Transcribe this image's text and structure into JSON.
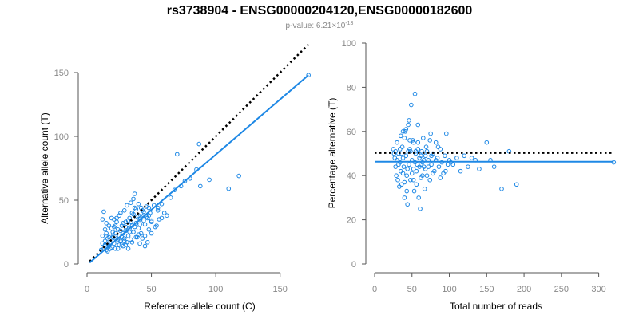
{
  "title": "rs3738904 - ENSG00000204120,ENSG00000182600",
  "subtitle_prefix": "p-value: 6.21×10",
  "subtitle_exponent": "-13",
  "colors": {
    "points": "#1e88e5",
    "fit": "#1e88e5",
    "reference": "#000000",
    "axes": "#555555"
  },
  "chart_data": [
    {
      "type": "scatter",
      "xlabel": "Reference allele count (C)",
      "ylabel": "Alternative allele count (T)",
      "xlim": [
        0,
        175
      ],
      "ylim": [
        0,
        150
      ],
      "xticks": [
        "0",
        "50",
        "100",
        "150"
      ],
      "yticks": [
        "0",
        "50",
        "100",
        "150"
      ],
      "xtick_values": [
        0,
        50,
        100,
        150
      ],
      "ytick_values": [
        0,
        50,
        100,
        150
      ],
      "fit_line": {
        "x": [
          2,
          172
        ],
        "y": [
          1,
          148
        ]
      },
      "reference_line": {
        "x": [
          2,
          172
        ],
        "y": [
          2,
          172
        ],
        "style": "dotted"
      },
      "points": [
        [
          13,
          12
        ],
        [
          14,
          15
        ],
        [
          15,
          11
        ],
        [
          16,
          20
        ],
        [
          17,
          14
        ],
        [
          18,
          22
        ],
        [
          19,
          13
        ],
        [
          20,
          18
        ],
        [
          20,
          25
        ],
        [
          21,
          16
        ],
        [
          22,
          12
        ],
        [
          23,
          20
        ],
        [
          24,
          27
        ],
        [
          25,
          15
        ],
        [
          25,
          22
        ],
        [
          26,
          18
        ],
        [
          27,
          30
        ],
        [
          28,
          24
        ],
        [
          28,
          14
        ],
        [
          29,
          20
        ],
        [
          30,
          33
        ],
        [
          30,
          26
        ],
        [
          31,
          17
        ],
        [
          32,
          22
        ],
        [
          33,
          28
        ],
        [
          33,
          36
        ],
        [
          34,
          19
        ],
        [
          35,
          30
        ],
        [
          35,
          40
        ],
        [
          36,
          25
        ],
        [
          37,
          44
        ],
        [
          38,
          32
        ],
        [
          38,
          21
        ],
        [
          39,
          37
        ],
        [
          40,
          47
        ],
        [
          40,
          28
        ],
        [
          41,
          35
        ],
        [
          42,
          24
        ],
        [
          43,
          42
        ],
        [
          44,
          38
        ],
        [
          45,
          31
        ],
        [
          46,
          45
        ],
        [
          47,
          36
        ],
        [
          48,
          27
        ],
        [
          49,
          40
        ],
        [
          50,
          34
        ],
        [
          52,
          46
        ],
        [
          54,
          30
        ],
        [
          55,
          42
        ],
        [
          58,
          47
        ],
        [
          12,
          22
        ],
        [
          12,
          35
        ],
        [
          13,
          41
        ],
        [
          14,
          27
        ],
        [
          15,
          32
        ],
        [
          16,
          10
        ],
        [
          17,
          30
        ],
        [
          18,
          12
        ],
        [
          19,
          28
        ],
        [
          21,
          35
        ],
        [
          22,
          30
        ],
        [
          23,
          36
        ],
        [
          24,
          12
        ],
        [
          25,
          38
        ],
        [
          27,
          15
        ],
        [
          29,
          42
        ],
        [
          31,
          46
        ],
        [
          32,
          12
        ],
        [
          34,
          48
        ],
        [
          36,
          51
        ],
        [
          37,
          55
        ],
        [
          39,
          21
        ],
        [
          41,
          16
        ],
        [
          43,
          20
        ],
        [
          45,
          22
        ],
        [
          47,
          17
        ],
        [
          50,
          24
        ],
        [
          53,
          29
        ],
        [
          56,
          35
        ],
        [
          60,
          40
        ],
        [
          62,
          38
        ],
        [
          65,
          52
        ],
        [
          68,
          58
        ],
        [
          70,
          86
        ],
        [
          73,
          61
        ],
        [
          76,
          65
        ],
        [
          80,
          67
        ],
        [
          85,
          74
        ],
        [
          87,
          94
        ],
        [
          88,
          61
        ],
        [
          95,
          66
        ],
        [
          110,
          59
        ],
        [
          118,
          69
        ],
        [
          172,
          148
        ],
        [
          11,
          11
        ],
        [
          12,
          16
        ],
        [
          14,
          18
        ],
        [
          16,
          16
        ],
        [
          18,
          17
        ],
        [
          20,
          21
        ],
        [
          22,
          24
        ],
        [
          24,
          19
        ],
        [
          26,
          26
        ],
        [
          28,
          32
        ],
        [
          30,
          29
        ],
        [
          32,
          34
        ],
        [
          34,
          33
        ],
        [
          36,
          39
        ],
        [
          38,
          43
        ],
        [
          40,
          38
        ],
        [
          42,
          44
        ],
        [
          44,
          41
        ],
        [
          46,
          37
        ],
        [
          48,
          44
        ],
        [
          26,
          40
        ],
        [
          30,
          15
        ],
        [
          35,
          17
        ],
        [
          40,
          23
        ],
        [
          45,
          14
        ],
        [
          50,
          33
        ],
        [
          55,
          44
        ],
        [
          58,
          36
        ],
        [
          19,
          36
        ],
        [
          21,
          29
        ],
        [
          23,
          33
        ],
        [
          27,
          21
        ],
        [
          29,
          18
        ],
        [
          33,
          25
        ],
        [
          37,
          29
        ],
        [
          41,
          31
        ],
        [
          44,
          34
        ],
        [
          48,
          38
        ],
        [
          15,
          24
        ],
        [
          17,
          21
        ]
      ]
    },
    {
      "type": "scatter",
      "xlabel": "Total number of reads",
      "ylabel": "Percentage alternative (T)",
      "xlim": [
        0,
        325
      ],
      "ylim": [
        0,
        100
      ],
      "xticks": [
        "0",
        "50",
        "100",
        "150",
        "200",
        "250",
        "300"
      ],
      "yticks": [
        "0",
        "20",
        "40",
        "60",
        "80",
        "100"
      ],
      "xtick_values": [
        0,
        50,
        100,
        150,
        200,
        250,
        300
      ],
      "ytick_values": [
        0,
        20,
        40,
        60,
        80,
        100
      ],
      "fit_line": {
        "x": [
          0,
          320
        ],
        "y": [
          46.3,
          46.3
        ]
      },
      "reference_line": {
        "x": [
          0,
          320
        ],
        "y": [
          50.3,
          50.3
        ],
        "style": "dotted"
      },
      "points": [
        [
          25,
          52
        ],
        [
          27,
          48
        ],
        [
          28,
          44
        ],
        [
          29,
          40
        ],
        [
          30,
          55
        ],
        [
          31,
          38
        ],
        [
          32,
          50
        ],
        [
          33,
          35
        ],
        [
          34,
          46
        ],
        [
          35,
          42
        ],
        [
          36,
          36
        ],
        [
          37,
          53
        ],
        [
          38,
          48
        ],
        [
          39,
          44
        ],
        [
          40,
          30
        ],
        [
          41,
          60
        ],
        [
          42,
          49
        ],
        [
          43,
          40
        ],
        [
          44,
          27
        ],
        [
          45,
          63
        ],
        [
          46,
          45
        ],
        [
          47,
          52
        ],
        [
          48,
          38
        ],
        [
          49,
          72
        ],
        [
          50,
          47
        ],
        [
          51,
          56
        ],
        [
          52,
          43
        ],
        [
          53,
          33
        ],
        [
          54,
          77
        ],
        [
          55,
          50
        ],
        [
          56,
          42
        ],
        [
          57,
          45
        ],
        [
          58,
          55
        ],
        [
          59,
          30
        ],
        [
          60,
          48
        ],
        [
          61,
          25
        ],
        [
          62,
          39
        ],
        [
          63,
          51
        ],
        [
          64,
          46
        ],
        [
          65,
          57
        ],
        [
          66,
          44
        ],
        [
          67,
          34
        ],
        [
          68,
          49
        ],
        [
          69,
          53
        ],
        [
          70,
          40
        ],
        [
          72,
          47
        ],
        [
          74,
          38
        ],
        [
          75,
          59
        ],
        [
          76,
          45
        ],
        [
          78,
          50
        ],
        [
          80,
          42
        ],
        [
          82,
          55
        ],
        [
          84,
          48
        ],
        [
          86,
          44
        ],
        [
          88,
          52
        ],
        [
          90,
          46
        ],
        [
          92,
          41
        ],
        [
          94,
          49
        ],
        [
          96,
          59
        ],
        [
          98,
          45
        ],
        [
          100,
          47
        ],
        [
          105,
          45
        ],
        [
          110,
          48
        ],
        [
          115,
          42
        ],
        [
          120,
          49
        ],
        [
          125,
          44
        ],
        [
          130,
          48
        ],
        [
          135,
          47
        ],
        [
          140,
          43
        ],
        [
          150,
          55
        ],
        [
          155,
          47
        ],
        [
          160,
          44
        ],
        [
          170,
          34
        ],
        [
          180,
          51
        ],
        [
          190,
          36
        ],
        [
          320,
          46
        ],
        [
          26,
          50
        ],
        [
          28,
          51
        ],
        [
          30,
          47
        ],
        [
          32,
          45
        ],
        [
          34,
          52
        ],
        [
          36,
          50
        ],
        [
          38,
          41
        ],
        [
          40,
          57
        ],
        [
          42,
          61
        ],
        [
          44,
          43
        ],
        [
          46,
          65
        ],
        [
          48,
          51
        ],
        [
          50,
          41
        ],
        [
          52,
          55
        ],
        [
          54,
          46
        ],
        [
          56,
          36
        ],
        [
          58,
          52
        ],
        [
          60,
          44
        ],
        [
          62,
          49
        ],
        [
          64,
          40
        ],
        [
          66,
          47
        ],
        [
          68,
          43
        ],
        [
          70,
          51
        ],
        [
          72,
          44
        ],
        [
          74,
          56
        ],
        [
          76,
          49
        ],
        [
          78,
          41
        ],
        [
          82,
          47
        ],
        [
          85,
          53
        ],
        [
          88,
          39
        ],
        [
          95,
          42
        ],
        [
          102,
          46
        ],
        [
          35,
          58
        ],
        [
          38,
          60
        ],
        [
          40,
          37
        ],
        [
          43,
          33
        ],
        [
          45,
          51
        ],
        [
          47,
          56
        ],
        [
          52,
          38
        ],
        [
          55,
          51
        ],
        [
          58,
          63
        ],
        [
          62,
          45
        ]
      ]
    }
  ]
}
